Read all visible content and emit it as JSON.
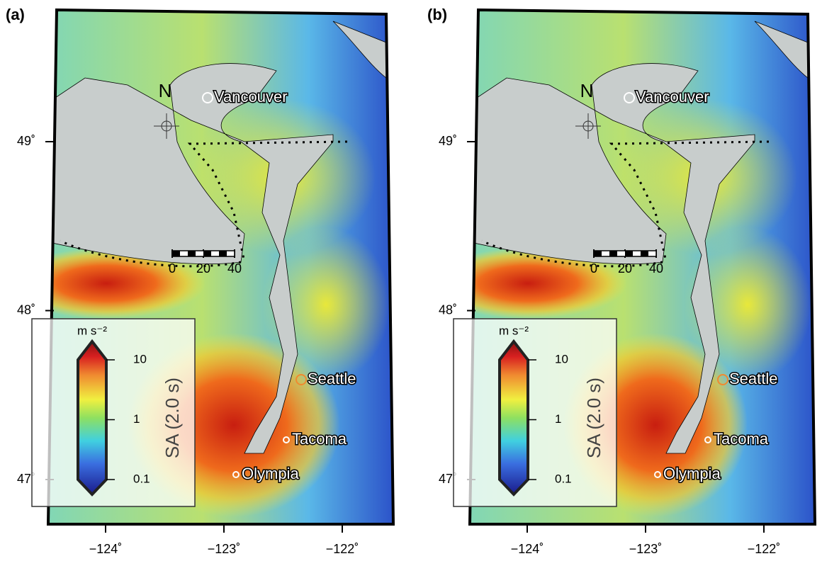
{
  "panels": [
    {
      "label": "(a)",
      "north": "N",
      "lat_ticks": [
        {
          "value": 49,
          "label": "49˚"
        },
        {
          "value": 48,
          "label": "48˚"
        },
        {
          "value": 47,
          "label": "47˚"
        }
      ],
      "lon_ticks": [
        {
          "value": -124,
          "label": "−124˚"
        },
        {
          "value": -123,
          "label": "−123˚"
        },
        {
          "value": -122,
          "label": "−122˚"
        }
      ],
      "cities": [
        "Vancouver",
        "Seattle",
        "Tacoma",
        "Olympia"
      ],
      "scalebar": [
        0,
        20,
        40
      ],
      "colorbar": {
        "unit": "m s⁻²",
        "title": "SA (2.0 s)",
        "ticks": [
          10,
          1,
          0.1
        ]
      }
    },
    {
      "label": "(b)",
      "north": "N",
      "lat_ticks": [
        {
          "value": 49,
          "label": "49˚"
        },
        {
          "value": 48,
          "label": "48˚"
        },
        {
          "value": 47,
          "label": "47˚"
        }
      ],
      "lon_ticks": [
        {
          "value": -124,
          "label": "−124˚"
        },
        {
          "value": -123,
          "label": "−123˚"
        },
        {
          "value": -122,
          "label": "−122˚"
        }
      ],
      "cities": [
        "Vancouver",
        "Seattle",
        "Tacoma",
        "Olympia"
      ],
      "scalebar": [
        0,
        20,
        40
      ],
      "colorbar": {
        "unit": "m s⁻²",
        "title": "SA (2.0 s)",
        "ticks": [
          10,
          1,
          0.1
        ]
      }
    }
  ]
}
